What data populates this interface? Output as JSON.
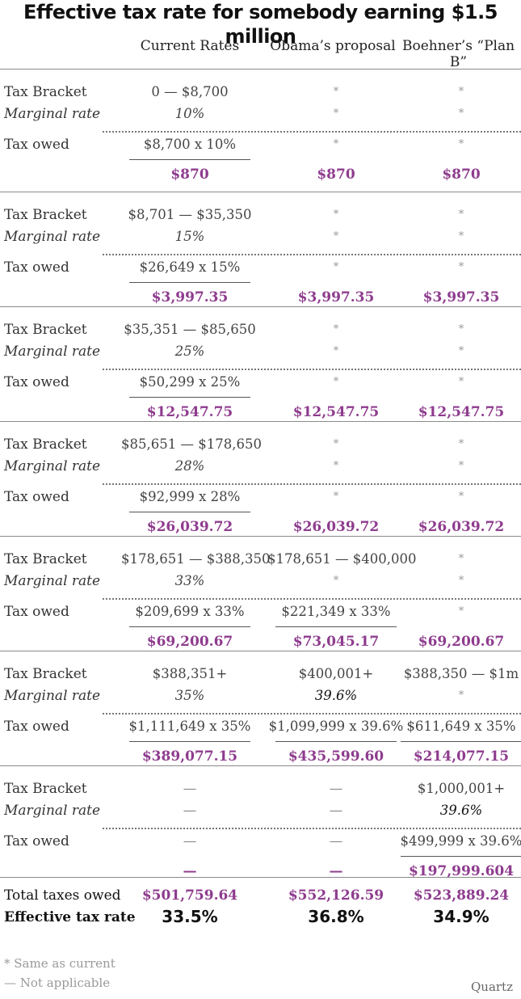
{
  "title": "Effective tax rate for somebody earning $1.5 million",
  "columns": [
    "Current Rates",
    "Obama’s proposal",
    "Boehner’s “Plan B”"
  ],
  "row_labels": {
    "bracket": "Tax Bracket",
    "marginal": "Marginal rate",
    "owed": "Tax owed"
  },
  "brackets": [
    {
      "bracket": [
        "0 — $8,700",
        "*",
        "*"
      ],
      "marginal": [
        "10%",
        "*",
        "*"
      ],
      "owed": [
        "$8,700 x 10%",
        "*",
        "*"
      ],
      "total": [
        "$870",
        "$870",
        "$870"
      ]
    },
    {
      "bracket": [
        "$8,701 — $35,350",
        "*",
        "*"
      ],
      "marginal": [
        "15%",
        "*",
        "*"
      ],
      "owed": [
        "$26,649 x 15%",
        "*",
        "*"
      ],
      "total": [
        "$3,997.35",
        "$3,997.35",
        "$3,997.35"
      ]
    },
    {
      "bracket": [
        "$35,351 — $85,650",
        "*",
        "*"
      ],
      "marginal": [
        "25%",
        "*",
        "*"
      ],
      "owed": [
        "$50,299 x 25%",
        "*",
        "*"
      ],
      "total": [
        "$12,547.75",
        "$12,547.75",
        "$12,547.75"
      ]
    },
    {
      "bracket": [
        "$85,651 — $178,650",
        "*",
        "*"
      ],
      "marginal": [
        "28%",
        "*",
        "*"
      ],
      "owed": [
        "$92,999 x 28%",
        "*",
        "*"
      ],
      "total": [
        "$26,039.72",
        "$26,039.72",
        "$26,039.72"
      ]
    },
    {
      "bracket": [
        "$178,651 — $388,350",
        "$178,651 — $400,000",
        "*"
      ],
      "marginal": [
        "33%",
        "*",
        "*"
      ],
      "owed": [
        "$209,699 x 33%",
        "$221,349 x 33%",
        "*"
      ],
      "total": [
        "$69,200.67",
        "$73,045.17",
        "$69,200.67"
      ]
    },
    {
      "bracket": [
        "$388,351+",
        "$400,001+",
        "$388,350 — $1m"
      ],
      "marginal": [
        "35%",
        "39.6%",
        "*"
      ],
      "owed": [
        "$1,111,649 x 35%",
        "$1,099,999 x 39.6%",
        "$611,649 x 35%"
      ],
      "total": [
        "$389,077.15",
        "$435,599.60",
        "$214,077.15"
      ]
    },
    {
      "bracket": [
        "—",
        "—",
        "$1,000,001+"
      ],
      "marginal": [
        "—",
        "—",
        "39.6%"
      ],
      "owed": [
        "—",
        "—",
        "$499,999 x 39.6%"
      ],
      "total": [
        "—",
        "—",
        "$197,999.604"
      ]
    }
  ],
  "summary": {
    "total_label": "Total taxes owed",
    "total_values": [
      "$501,759.64",
      "$552,126.59",
      "$523,889.24"
    ],
    "effective_label": "Effective tax rate",
    "effective_values": [
      "33.5%",
      "36.8%",
      "34.9%"
    ]
  },
  "footnotes": [
    "* Same as current",
    "— Not applicable"
  ],
  "brand": "Quartz",
  "colors": {
    "accent": "#8e3c8e",
    "text": "#333333",
    "muted": "#9a9a9a",
    "rule": "#8a8a8a"
  },
  "chart_data": {
    "type": "table",
    "title": "Effective tax rate for somebody earning $1.5 million",
    "columns": [
      "Current Rates",
      "Obama’s proposal",
      "Boehner’s “Plan B”"
    ],
    "total_taxes_owed": [
      501759.64,
      552126.59,
      523889.24
    ],
    "effective_tax_rate_percent": [
      33.5,
      36.8,
      34.9
    ]
  }
}
